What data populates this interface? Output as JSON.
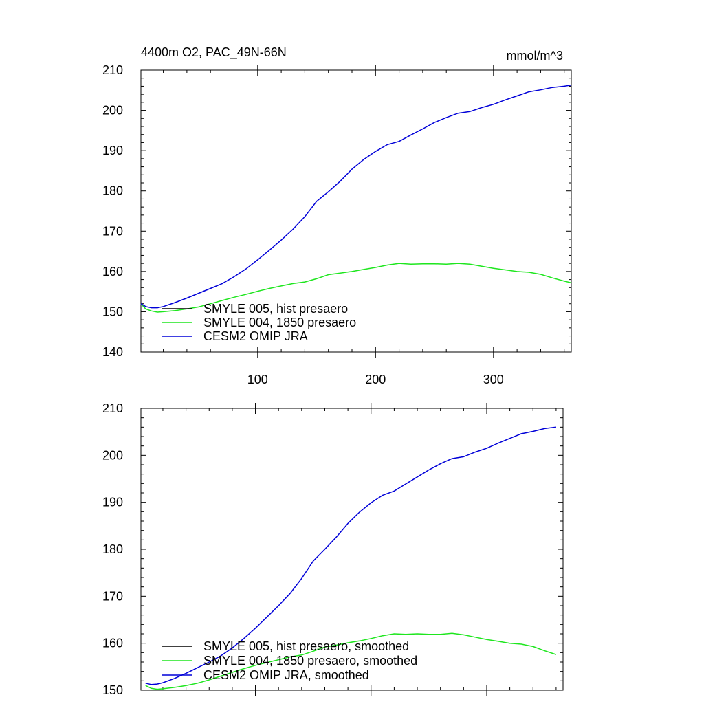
{
  "colors": {
    "black": "#000000",
    "green": "#1ee61e",
    "blue": "#0000d8"
  },
  "chart_data": [
    {
      "type": "line",
      "title": "4400m O2, PAC_49N-66N",
      "units": "mmol/m^3",
      "xlim": [
        1,
        366
      ],
      "ylim": [
        140,
        210
      ],
      "yticks": [
        140,
        150,
        160,
        170,
        180,
        190,
        200,
        210
      ],
      "xticks": [
        100,
        200,
        300
      ],
      "xticklabels": [
        "100",
        "200",
        "300"
      ],
      "legend_position": "lower-left",
      "series": [
        {
          "name": "SMYLE 005, hist presaero",
          "color": "#000000",
          "x": [],
          "y": []
        },
        {
          "name": "SMYLE 004, 1850 presaero",
          "color": "#1ee61e",
          "x": [
            1,
            5,
            10,
            15,
            20,
            30,
            40,
            50,
            60,
            70,
            80,
            90,
            100,
            110,
            120,
            130,
            140,
            150,
            160,
            170,
            180,
            190,
            200,
            210,
            220,
            230,
            240,
            250,
            260,
            270,
            280,
            290,
            300,
            310,
            320,
            330,
            340,
            350,
            360,
            366
          ],
          "y": [
            152.0,
            150.7,
            150.2,
            149.9,
            150.0,
            150.3,
            150.7,
            151.2,
            152.0,
            152.8,
            153.6,
            154.3,
            155.1,
            155.8,
            156.4,
            157.0,
            157.4,
            158.2,
            159.2,
            159.6,
            160.0,
            160.5,
            161.0,
            161.6,
            162.0,
            161.8,
            161.9,
            161.9,
            161.8,
            162.0,
            161.8,
            161.3,
            160.8,
            160.4,
            160.0,
            159.8,
            159.3,
            158.4,
            157.6,
            157.2
          ]
        },
        {
          "name": "CESM2 OMIP JRA",
          "color": "#0000d8",
          "x": [
            1,
            5,
            10,
            15,
            20,
            30,
            40,
            50,
            60,
            70,
            80,
            90,
            100,
            110,
            120,
            130,
            140,
            150,
            160,
            170,
            180,
            190,
            200,
            210,
            220,
            230,
            240,
            250,
            260,
            270,
            280,
            290,
            300,
            310,
            320,
            330,
            340,
            350,
            360,
            366
          ],
          "y": [
            152.0,
            151.3,
            151.0,
            151.0,
            151.3,
            152.3,
            153.4,
            154.6,
            155.8,
            157.0,
            158.7,
            160.6,
            162.9,
            165.3,
            167.8,
            170.5,
            173.6,
            177.4,
            179.8,
            182.4,
            185.4,
            187.8,
            189.8,
            191.5,
            192.3,
            193.9,
            195.4,
            197.0,
            198.2,
            199.3,
            199.7,
            200.7,
            201.5,
            202.6,
            203.6,
            204.6,
            205.1,
            205.7,
            206.0,
            206.3
          ]
        }
      ]
    },
    {
      "type": "line",
      "title": "",
      "units": "",
      "xlim": [
        1,
        366
      ],
      "ylim": [
        150,
        210
      ],
      "yticks": [
        150,
        160,
        170,
        180,
        190,
        200,
        210
      ],
      "xticks": [
        100,
        200,
        300
      ],
      "xticklabels": [],
      "legend_position": "lower-left",
      "series": [
        {
          "name": "SMYLE 005, hist presaero, smoothed",
          "color": "#000000",
          "x": [],
          "y": []
        },
        {
          "name": "SMYLE 004, 1850 presaero, smoothed",
          "color": "#1ee61e",
          "x": [
            5,
            10,
            15,
            20,
            30,
            40,
            50,
            60,
            70,
            80,
            90,
            100,
            110,
            120,
            130,
            140,
            150,
            160,
            170,
            180,
            190,
            200,
            210,
            220,
            230,
            240,
            250,
            260,
            270,
            280,
            290,
            300,
            310,
            320,
            330,
            340,
            350,
            360
          ],
          "y": [
            151.0,
            150.4,
            150.2,
            150.3,
            150.6,
            151.0,
            151.5,
            152.2,
            153.0,
            153.8,
            154.6,
            155.3,
            155.9,
            156.5,
            157.1,
            157.5,
            158.3,
            159.2,
            159.6,
            160.1,
            160.5,
            161.0,
            161.6,
            162.0,
            161.9,
            162.0,
            161.9,
            161.9,
            162.1,
            161.8,
            161.3,
            160.8,
            160.4,
            160.0,
            159.8,
            159.3,
            158.4,
            157.6
          ]
        },
        {
          "name": "CESM2 OMIP JRA, smoothed",
          "color": "#0000d8",
          "x": [
            5,
            10,
            15,
            20,
            30,
            40,
            50,
            60,
            70,
            80,
            90,
            100,
            110,
            120,
            130,
            140,
            150,
            160,
            170,
            180,
            190,
            200,
            210,
            220,
            230,
            240,
            250,
            260,
            270,
            280,
            290,
            300,
            310,
            320,
            330,
            340,
            350,
            360
          ],
          "y": [
            151.5,
            151.2,
            151.3,
            151.6,
            152.5,
            153.6,
            154.8,
            156.0,
            157.3,
            159.0,
            161.0,
            163.2,
            165.6,
            168.0,
            170.6,
            173.8,
            177.5,
            180.0,
            182.6,
            185.5,
            187.9,
            189.9,
            191.5,
            192.4,
            193.9,
            195.4,
            196.9,
            198.2,
            199.3,
            199.7,
            200.7,
            201.5,
            202.6,
            203.6,
            204.6,
            205.1,
            205.7,
            206.0
          ]
        }
      ]
    }
  ]
}
